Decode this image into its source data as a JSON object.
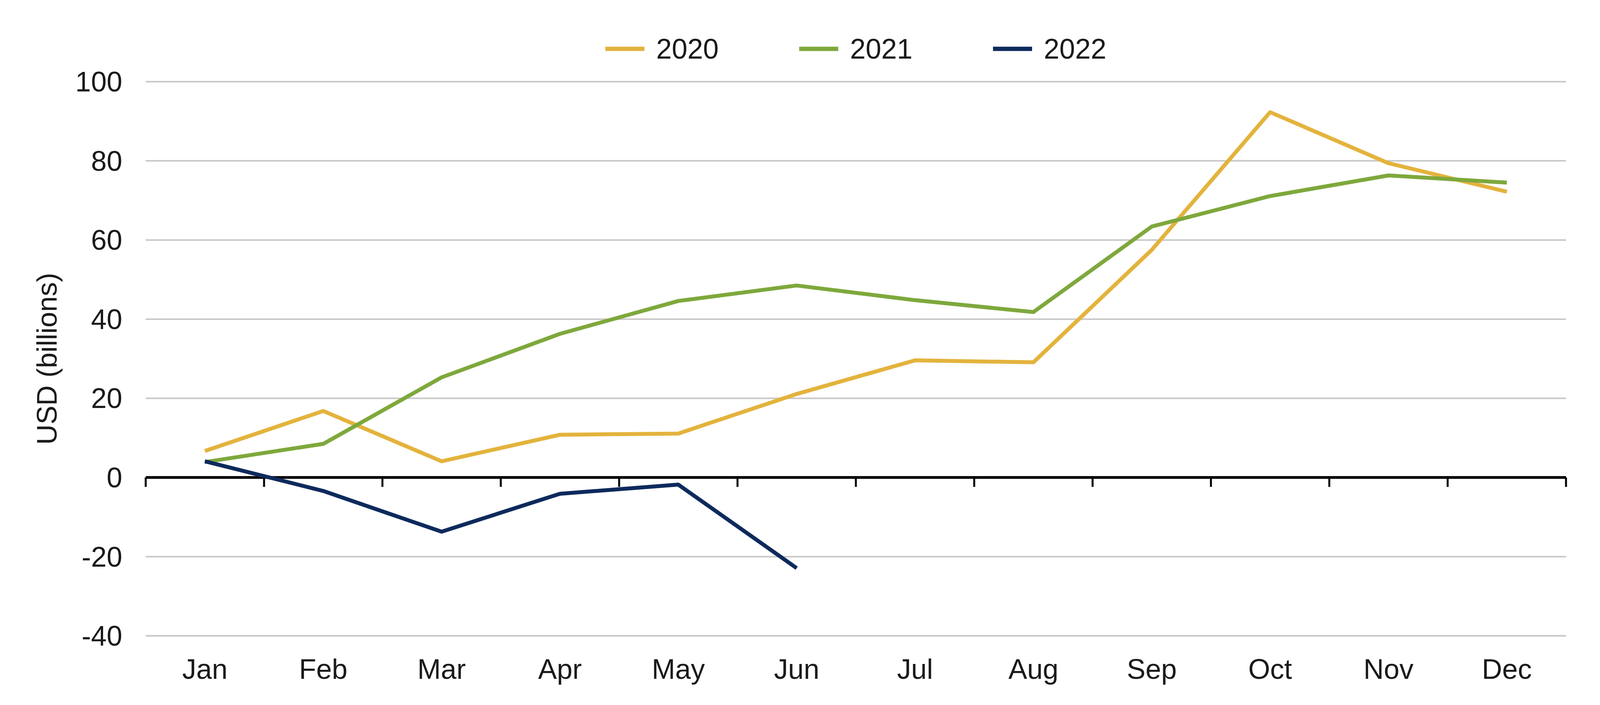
{
  "chart_data": {
    "type": "line",
    "y_label": "USD (billions)",
    "categories": [
      "Jan",
      "Feb",
      "Mar",
      "Apr",
      "May",
      "Jun",
      "Jul",
      "Aug",
      "Sep",
      "Oct",
      "Nov",
      "Dec"
    ],
    "series": [
      {
        "name": "2020",
        "color": "#e3b33c",
        "values": [
          6.7,
          16.8,
          4.1,
          10.8,
          11.1,
          21.1,
          29.6,
          29.1,
          57.5,
          92.3,
          79.4,
          72.2
        ]
      },
      {
        "name": "2021",
        "color": "#7ea83c",
        "values": [
          3.9,
          8.5,
          25.3,
          36.3,
          44.6,
          48.5,
          44.8,
          41.8,
          63.4,
          71.1,
          76.3,
          74.5
        ]
      },
      {
        "name": "2022",
        "color": "#0d2a5c",
        "values": [
          4.1,
          -3.4,
          -13.7,
          -4.1,
          -1.8,
          -22.9,
          null,
          null,
          null,
          null,
          null,
          null
        ]
      }
    ],
    "ylim": [
      -40,
      100
    ],
    "yticks": [
      -40,
      -20,
      0,
      20,
      40,
      60,
      80,
      100
    ],
    "grid": true,
    "legend": "top"
  }
}
